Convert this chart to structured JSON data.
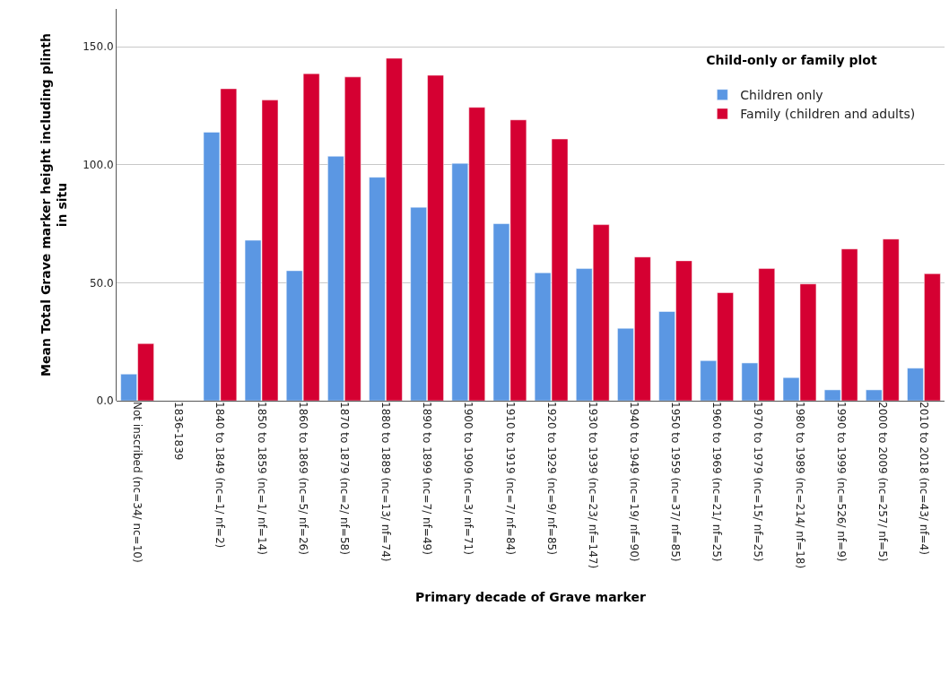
{
  "chart_data": {
    "type": "bar",
    "xlabel": "Primary decade of Grave marker",
    "ylabel": "Mean Total Grave marker height including plinth in situ",
    "legend_title": "Child-only or family plot",
    "categories": [
      "Not inscribed (nc=34/ nc=10)",
      "1836-1839",
      "1840 to 1849 (nc=1/ nf=2)",
      "1850 to 1859 (nc=1/ nf=14)",
      "1860 to 1869 (nc=5/ nf=26)",
      "1870 to 1879 (nc=2/ nf=58)",
      "1880 to 1889 (nc=13/ nf=74)",
      "1890 to 1899 (nc=7/ nf=49)",
      "1900 to 1909 (nc=3/ nf=71)",
      "1910 to 1919 (nc=7/ nf=84)",
      "1920 to 1929 (nc=9/ nf=85)",
      "1930 to 1939 (nc=23/ nf=147)",
      "1940 to 1949 (nc=19/ nf=90)",
      "1950 to 1959 (nc=37/ nf=85)",
      "1960 to 1969 (nc=21/ nf=25)",
      "1970 to 1979 (nc=15/ nf=25)",
      "1980 to 1989 (nc=214/ nf=18)",
      "1990 to 1999 (nc=526/ nf=9)",
      "2000 to 2009 (nc=257/ nf=5)",
      "2010 to 2018 (nc=43/ nf=4)"
    ],
    "series": [
      {
        "name": "Children only",
        "color": "#5b97e3",
        "values": [
          11.3,
          null,
          113.8,
          68,
          55.1,
          103.6,
          94.7,
          82,
          100.6,
          75,
          54.2,
          56,
          30.7,
          37.8,
          17,
          16,
          9.8,
          4.6,
          4.6,
          13.8
        ]
      },
      {
        "name": "Family (children and adults)",
        "color": "#d50032",
        "values": [
          24.2,
          null,
          132.2,
          127.4,
          138.6,
          137.2,
          145.1,
          137.9,
          124.3,
          119,
          110.9,
          74.6,
          60.9,
          59.3,
          45.8,
          56,
          49.5,
          64.3,
          68.5,
          53.8
        ]
      }
    ],
    "ylim": [
      0,
      166
    ],
    "yticks": [
      {
        "value": 0,
        "label": "0.0"
      },
      {
        "value": 50,
        "label": "50.0"
      },
      {
        "value": 100,
        "label": "100.0"
      },
      {
        "value": 150,
        "label": "150.0"
      }
    ],
    "grid": "y",
    "legend": "top right"
  }
}
